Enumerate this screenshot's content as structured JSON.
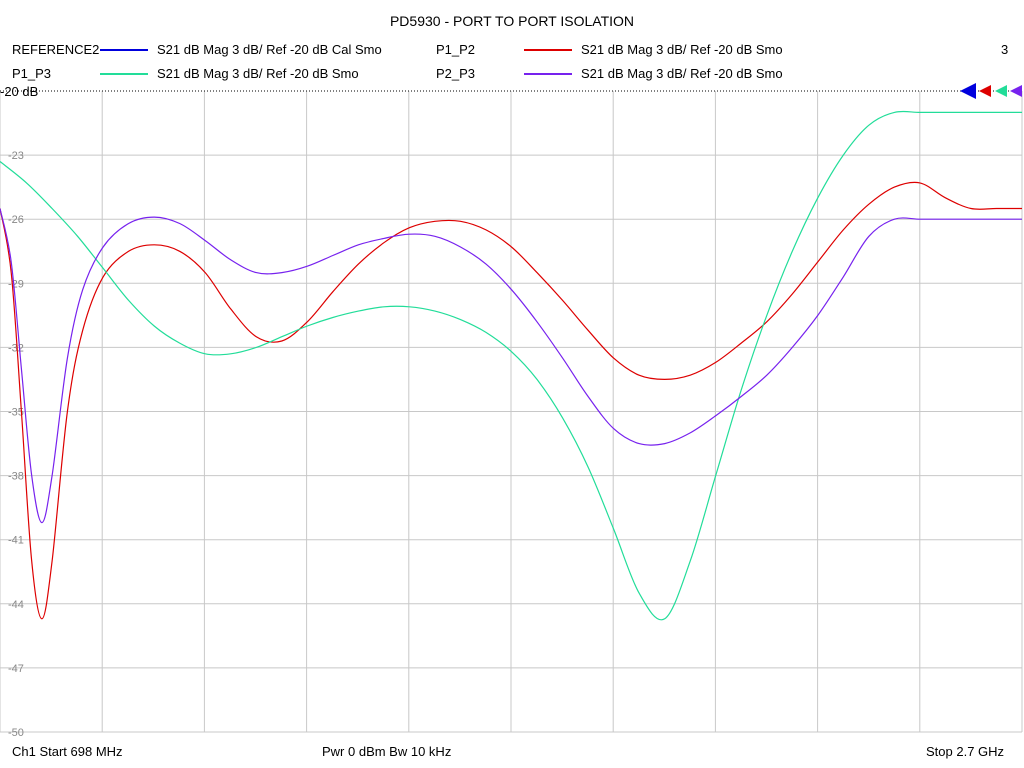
{
  "title": "PD5930 - PORT TO PORT ISOLATION",
  "channel_count": "3",
  "reference_label": "-20 dB",
  "legend": [
    {
      "name": "REFERENCE2",
      "desc": "S21  dB Mag  3 dB/ Ref -20 dB  Cal Smo",
      "color": "#0000dd"
    },
    {
      "name": "P1_P2",
      "desc": "S21  dB Mag  3 dB/ Ref -20 dB  Smo",
      "color": "#dd0000"
    },
    {
      "name": "P1_P3",
      "desc": "S21  dB Mag  3 dB/ Ref -20 dB  Smo",
      "color": "#22dd99"
    },
    {
      "name": "P2_P3",
      "desc": "S21  dB Mag  3 dB/ Ref -20 dB  Smo",
      "color": "#7722ee"
    }
  ],
  "footer": {
    "start": "Ch1  Start  698 MHz",
    "power": "Pwr  0 dBm  Bw  10 kHz",
    "stop": "Stop  2.7 GHz"
  },
  "chart_data": {
    "type": "line",
    "title": "PD5930 - PORT TO PORT ISOLATION",
    "xlabel": "",
    "ylabel": "",
    "xlim": [
      698,
      2700
    ],
    "ylim": [
      -50,
      -20
    ],
    "y_ticks": [
      -20,
      -23,
      -26,
      -29,
      -32,
      -35,
      -38,
      -41,
      -44,
      -47,
      -50
    ],
    "grid": true,
    "legend_placement": "top",
    "series": [
      {
        "name": "P1_P2",
        "color": "#dd0000",
        "x": [
          698,
          720,
          740,
          760,
          780,
          800,
          830,
          860,
          900,
          950,
          1000,
          1050,
          1100,
          1150,
          1200,
          1250,
          1300,
          1350,
          1400,
          1450,
          1500,
          1550,
          1600,
          1650,
          1700,
          1750,
          1800,
          1850,
          1900,
          1950,
          2000,
          2050,
          2100,
          2150,
          2200,
          2250,
          2300,
          2350,
          2400,
          2450,
          2500,
          2550,
          2600,
          2650,
          2700
        ],
        "y": [
          -25.5,
          -28.5,
          -35.0,
          -42.0,
          -44.7,
          -42.0,
          -35.0,
          -31.2,
          -28.7,
          -27.5,
          -27.2,
          -27.5,
          -28.5,
          -30.2,
          -31.5,
          -31.7,
          -30.8,
          -29.4,
          -28.1,
          -27.1,
          -26.4,
          -26.1,
          -26.1,
          -26.5,
          -27.3,
          -28.5,
          -29.8,
          -31.2,
          -32.5,
          -33.3,
          -33.5,
          -33.3,
          -32.7,
          -31.8,
          -30.8,
          -29.5,
          -28.0,
          -26.5,
          -25.3,
          -24.5,
          -24.3,
          -25.0,
          -25.5,
          -25.5,
          -25.5
        ]
      },
      {
        "name": "P1_P3",
        "color": "#22dd99",
        "x": [
          698,
          750,
          800,
          850,
          900,
          950,
          1000,
          1050,
          1100,
          1150,
          1200,
          1250,
          1300,
          1350,
          1400,
          1450,
          1500,
          1550,
          1600,
          1650,
          1700,
          1750,
          1800,
          1850,
          1900,
          1950,
          2000,
          2050,
          2100,
          2150,
          2200,
          2250,
          2300,
          2350,
          2400,
          2450,
          2500,
          2550,
          2600,
          2650,
          2700
        ],
        "y": [
          -23.3,
          -24.3,
          -25.5,
          -26.8,
          -28.3,
          -29.8,
          -31.0,
          -31.8,
          -32.3,
          -32.3,
          -32.0,
          -31.5,
          -31.0,
          -30.6,
          -30.3,
          -30.1,
          -30.1,
          -30.3,
          -30.7,
          -31.3,
          -32.2,
          -33.5,
          -35.3,
          -37.6,
          -40.5,
          -43.5,
          -44.7,
          -42.0,
          -38.0,
          -34.0,
          -30.5,
          -27.5,
          -25.0,
          -23.0,
          -21.6,
          -21.0,
          -21.0,
          -21.0,
          -21.0,
          -21.0,
          -21.0
        ]
      },
      {
        "name": "P2_P3",
        "color": "#7722ee",
        "x": [
          698,
          720,
          740,
          760,
          780,
          800,
          830,
          860,
          900,
          950,
          1000,
          1050,
          1100,
          1150,
          1200,
          1250,
          1300,
          1350,
          1400,
          1450,
          1500,
          1550,
          1600,
          1650,
          1700,
          1750,
          1800,
          1850,
          1900,
          1950,
          2000,
          2050,
          2100,
          2150,
          2200,
          2250,
          2300,
          2350,
          2400,
          2450,
          2500,
          2550,
          2600,
          2650,
          2700
        ],
        "y": [
          -25.5,
          -28.0,
          -33.0,
          -38.0,
          -40.2,
          -38.0,
          -32.5,
          -29.3,
          -27.3,
          -26.2,
          -25.9,
          -26.2,
          -27.0,
          -27.9,
          -28.5,
          -28.5,
          -28.2,
          -27.7,
          -27.2,
          -26.9,
          -26.7,
          -26.8,
          -27.3,
          -28.1,
          -29.3,
          -30.8,
          -32.5,
          -34.3,
          -35.8,
          -36.5,
          -36.5,
          -36.0,
          -35.2,
          -34.3,
          -33.3,
          -32.0,
          -30.5,
          -28.7,
          -26.8,
          -26.0,
          -26.0,
          -26.0,
          -26.0,
          -26.0,
          -26.0
        ]
      }
    ]
  }
}
